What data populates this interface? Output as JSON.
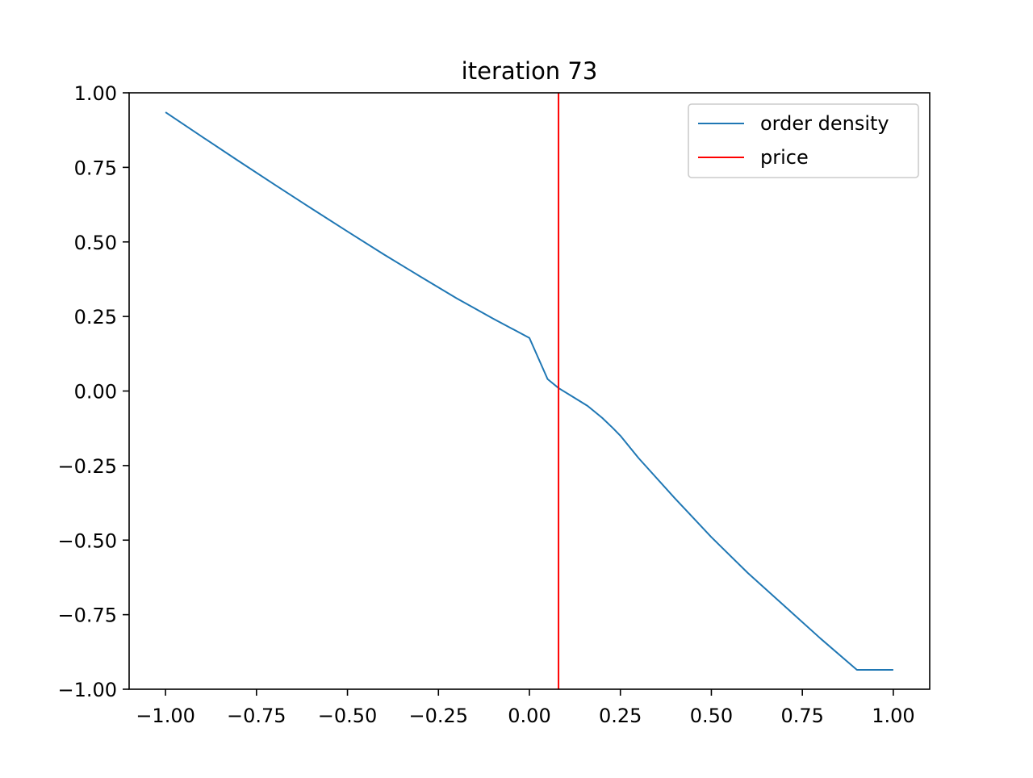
{
  "chart_data": {
    "type": "line",
    "title": "iteration 73",
    "xlabel": "",
    "ylabel": "",
    "xlim": [
      -1.1,
      1.1
    ],
    "ylim": [
      -1.0,
      1.0
    ],
    "xticks": [
      -1.0,
      -0.75,
      -0.5,
      -0.25,
      0.0,
      0.25,
      0.5,
      0.75,
      1.0
    ],
    "xtick_labels": [
      "−1.00",
      "−0.75",
      "−0.50",
      "−0.25",
      "0.00",
      "0.25",
      "0.50",
      "0.75",
      "1.00"
    ],
    "yticks": [
      1.0,
      0.75,
      0.5,
      0.25,
      0.0,
      -0.25,
      -0.5,
      -0.75,
      -1.0
    ],
    "ytick_labels": [
      "1.00",
      "0.75",
      "0.50",
      "0.25",
      "0.00",
      "−0.25",
      "−0.50",
      "−0.75",
      "−1.00"
    ],
    "grid": false,
    "legend_position": "top-right",
    "series": [
      {
        "name": "order density",
        "color": "#1f77b4",
        "x": [
          -1.0,
          -0.9,
          -0.8,
          -0.7,
          -0.6,
          -0.5,
          -0.4,
          -0.3,
          -0.2,
          -0.1,
          0.0,
          0.05,
          0.08,
          0.12,
          0.16,
          0.2,
          0.23,
          0.25,
          0.3,
          0.4,
          0.5,
          0.6,
          0.7,
          0.8,
          0.9,
          1.0
        ],
        "y": [
          0.935,
          0.853,
          0.772,
          0.692,
          0.613,
          0.535,
          0.458,
          0.384,
          0.311,
          0.243,
          0.178,
          0.04,
          0.01,
          -0.02,
          -0.05,
          -0.09,
          -0.125,
          -0.15,
          -0.225,
          -0.36,
          -0.49,
          -0.61,
          -0.72,
          -0.83,
          -0.935,
          -0.935
        ]
      }
    ],
    "vlines": [
      {
        "name": "price",
        "color": "#ff0000",
        "x": 0.08
      }
    ]
  }
}
